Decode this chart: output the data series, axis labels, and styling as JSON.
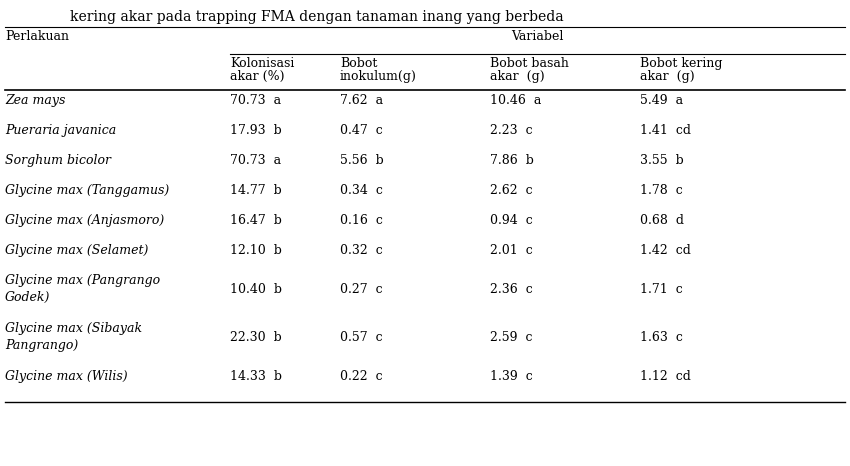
{
  "title": "kering akar pada trapping FMA dengan tanaman inang yang berbeda",
  "col_header_main": "Variabel",
  "col_perlakuan": "Perlakuan",
  "col_headers_line1": [
    "Kolonisasi",
    "Bobot",
    "Bobot basah",
    "Bobot kering"
  ],
  "col_headers_line2": [
    "akar (%)",
    "inokulum(g)",
    "akar  (g)",
    "akar  (g)"
  ],
  "rows": [
    {
      "label": "Zea mays",
      "values": [
        "70.73  a",
        "7.62  a",
        "10.46  a",
        "5.49  a"
      ]
    },
    {
      "label": "Pueraria javanica",
      "values": [
        "17.93  b",
        "0.47  c",
        "2.23  c",
        "1.41  cd"
      ]
    },
    {
      "label": "Sorghum bicolor",
      "values": [
        "70.73  a",
        "5.56  b",
        "7.86  b",
        "3.55  b"
      ]
    },
    {
      "label": "Glycine max (Tanggamus)",
      "values": [
        "14.77  b",
        "0.34  c",
        "2.62  c",
        "1.78  c"
      ]
    },
    {
      "label": "Glycine max (Anjasmoro)",
      "values": [
        "16.47  b",
        "0.16  c",
        "0.94  c",
        "0.68  d"
      ]
    },
    {
      "label": "Glycine max (Selamet)",
      "values": [
        "12.10  b",
        "0.32  c",
        "2.01  c",
        "1.42  cd"
      ]
    },
    {
      "label": "Glycine max (Pangrango\nGodek)",
      "values": [
        "10.40  b",
        "0.27  c",
        "2.36  c",
        "1.71  c"
      ]
    },
    {
      "label": "Glycine max (Sibayak\nPangrango)",
      "values": [
        "22.30  b",
        "0.57  c",
        "2.59  c",
        "1.63  c"
      ]
    },
    {
      "label": "Glycine max (Wilis)",
      "values": [
        "14.33  b",
        "0.22  c",
        "1.39  c",
        "1.12  cd"
      ]
    }
  ],
  "bg_color": "#ffffff",
  "text_color": "#000000",
  "line_color": "#000000",
  "font_size": 9.0,
  "title_font_size": 10.0
}
